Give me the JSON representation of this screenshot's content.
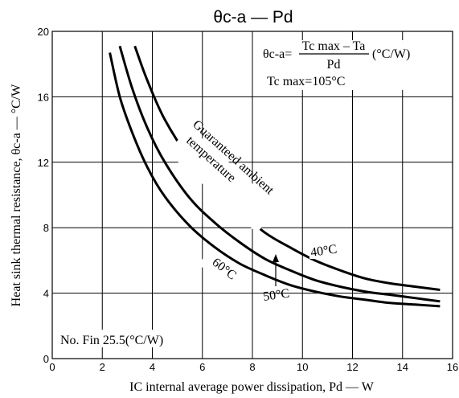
{
  "chart_data": {
    "type": "line",
    "title": "θc-a — Pd",
    "xlabel": "IC internal average power dissipation, Pd — W",
    "ylabel": "Heat sink thermal resistance, θc-a — °C/W",
    "xlim": [
      0,
      16
    ],
    "ylim": [
      0,
      20
    ],
    "x_ticks": [
      "0",
      "2",
      "4",
      "6",
      "8",
      "10",
      "12",
      "14",
      "16"
    ],
    "y_ticks": [
      "0",
      "4",
      "8",
      "12",
      "16",
      "20"
    ],
    "grid": true,
    "series": [
      {
        "name": "40°C",
        "x": [
          3.3,
          3.8,
          4.5,
          5.5,
          6.5,
          7.5,
          8.5,
          9.5,
          10.5,
          11.5,
          12.5,
          13.5,
          14.5,
          15.5
        ],
        "y": [
          19.1,
          17.0,
          14.6,
          12.2,
          10.4,
          9.0,
          7.7,
          6.8,
          6.0,
          5.4,
          4.9,
          4.6,
          4.4,
          4.2
        ]
      },
      {
        "name": "50°C",
        "x": [
          2.7,
          3.2,
          3.8,
          4.5,
          5.5,
          6.5,
          7.5,
          8.5,
          9.5,
          10.5,
          11.5,
          12.5,
          13.5,
          14.5,
          15.5
        ],
        "y": [
          19.1,
          16.5,
          14.1,
          12.0,
          9.8,
          8.3,
          7.1,
          6.1,
          5.4,
          4.8,
          4.4,
          4.1,
          3.9,
          3.7,
          3.5
        ]
      },
      {
        "name": "60°C",
        "x": [
          2.3,
          2.7,
          3.2,
          3.8,
          4.5,
          5.5,
          6.5,
          7.5,
          8.5,
          9.5,
          10.5,
          11.5,
          12.5,
          13.5,
          14.5,
          15.5
        ],
        "y": [
          18.7,
          16.0,
          13.8,
          11.7,
          9.9,
          8.1,
          6.8,
          5.8,
          5.1,
          4.5,
          4.1,
          3.8,
          3.6,
          3.4,
          3.3,
          3.2
        ]
      }
    ],
    "annotations": {
      "formula_lhs": "θc-a=",
      "formula_numerator": "Tc max – Ta",
      "formula_denominator": "Pd",
      "formula_unit": "(°C/W)",
      "tc_max": "Tc max=105°C",
      "guaranteed_line1": "Guaranteed ambient",
      "guaranteed_line2": "temperature",
      "fin": "No. Fin 25.5(°C/W)",
      "label_40": "40°C",
      "label_50": "50°C",
      "label_60": "60°C"
    }
  }
}
